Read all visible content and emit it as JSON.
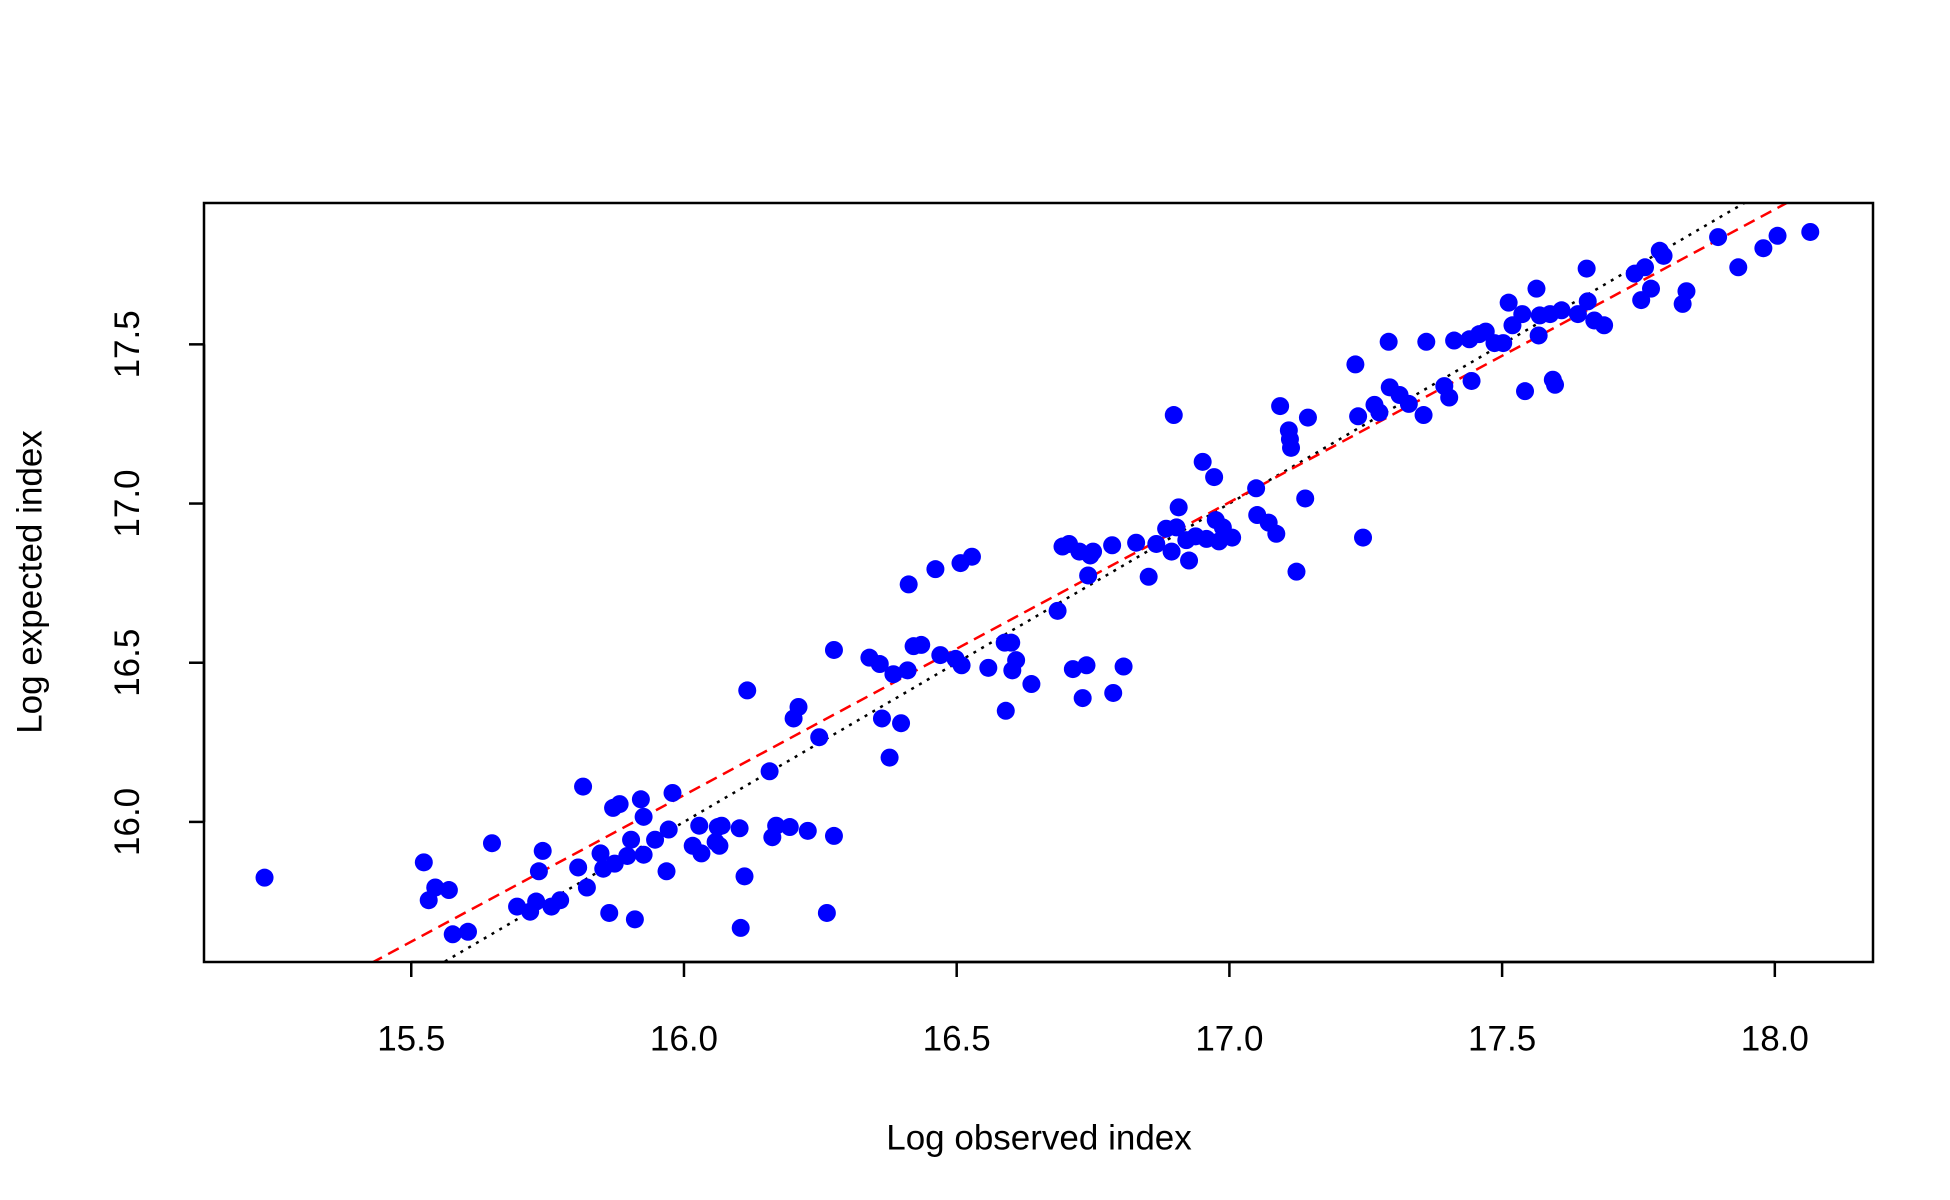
{
  "chart_data": {
    "type": "scatter",
    "xlabel": "Log observed index",
    "ylabel": "Log expected index",
    "xlim": [
      15.12,
      18.18
    ],
    "ylim": [
      15.56,
      17.944
    ],
    "xticks": [
      15.5,
      {
        "value": 16,
        "label": "16.0"
      },
      16.5,
      {
        "value": 17,
        "label": "17.0"
      },
      17.5,
      {
        "value": 18,
        "label": "18.0"
      }
    ],
    "yticks": [
      {
        "value": 16,
        "label": "16.0"
      },
      16.5,
      {
        "value": 17,
        "label": "17.0"
      },
      17.5
    ],
    "grid": false,
    "lines": [
      {
        "slope": 1,
        "intercept": 0,
        "color": "#000000",
        "style": "dotted"
      },
      {
        "slope": 0.92,
        "intercept": 1.364,
        "color": "#ff0000",
        "style": "dashed"
      }
    ],
    "series": [
      {
        "color": "#0000ff",
        "x": [
          15.231,
          15.523,
          15.532,
          15.544,
          15.569,
          15.576,
          15.604,
          15.648,
          15.694,
          15.718,
          15.729,
          15.734,
          15.741,
          15.757,
          15.773,
          15.806,
          15.815,
          15.822,
          15.847,
          15.852,
          15.863,
          15.87,
          15.873,
          15.882,
          15.896,
          15.903,
          15.91,
          15.921,
          15.926,
          15.926,
          15.947,
          15.968,
          15.972,
          15.979,
          16.016,
          16.028,
          16.032,
          16.058,
          16.062,
          16.065,
          16.069,
          16.102,
          16.104,
          16.111,
          16.116,
          16.157,
          16.162,
          16.169,
          16.194,
          16.201,
          16.21,
          16.227,
          16.248,
          16.262,
          16.275,
          16.275,
          16.34,
          16.359,
          16.363,
          16.377,
          16.384,
          16.398,
          16.41,
          16.412,
          16.421,
          16.435,
          16.461,
          16.47,
          16.498,
          16.507,
          16.509,
          16.528,
          16.558,
          16.588,
          16.59,
          16.6,
          16.602,
          16.609,
          16.637,
          16.685,
          16.694,
          16.706,
          16.713,
          16.725,
          16.731,
          16.738,
          16.741,
          16.745,
          16.75,
          16.785,
          16.787,
          16.806,
          16.829,
          16.852,
          16.866,
          16.884,
          16.898,
          16.894,
          16.903,
          16.907,
          16.921,
          16.926,
          16.938,
          16.951,
          16.958,
          16.972,
          16.975,
          16.981,
          16.988,
          17.005,
          17.049,
          17.051,
          17.072,
          17.086,
          17.093,
          17.109,
          17.113,
          17.111,
          17.123,
          17.139,
          17.144,
          17.231,
          17.236,
          17.245,
          17.266,
          17.275,
          17.292,
          17.294,
          17.312,
          17.329,
          17.356,
          17.361,
          17.394,
          17.403,
          17.412,
          17.44,
          17.444,
          17.458,
          17.47,
          17.486,
          17.502,
          17.512,
          17.519,
          17.537,
          17.542,
          17.563,
          17.567,
          17.569,
          17.588,
          17.593,
          17.597,
          17.609,
          17.639,
          17.655,
          17.657,
          17.669,
          17.687,
          17.743,
          17.755,
          17.762,
          17.773,
          17.789,
          17.796,
          17.831,
          17.838,
          17.896,
          17.933,
          17.979,
          18.005,
          18.065
        ],
        "values": [
          15.825,
          15.873,
          15.754,
          15.794,
          15.786,
          15.647,
          15.655,
          15.933,
          15.734,
          15.718,
          15.75,
          15.845,
          15.909,
          15.734,
          15.754,
          15.857,
          16.111,
          15.794,
          15.901,
          15.853,
          15.714,
          16.044,
          15.869,
          16.056,
          15.893,
          15.944,
          15.694,
          16.071,
          15.897,
          16.016,
          15.944,
          15.845,
          15.976,
          16.091,
          15.925,
          15.988,
          15.901,
          15.937,
          15.984,
          15.925,
          15.988,
          15.98,
          15.667,
          15.829,
          16.413,
          16.159,
          15.952,
          15.988,
          15.984,
          16.325,
          16.361,
          15.972,
          16.266,
          15.714,
          16.54,
          15.956,
          16.516,
          16.496,
          16.325,
          16.202,
          16.464,
          16.31,
          16.476,
          16.746,
          16.552,
          16.556,
          16.794,
          16.524,
          16.512,
          16.813,
          16.492,
          16.833,
          16.484,
          16.563,
          16.349,
          16.563,
          16.476,
          16.508,
          16.433,
          16.663,
          16.865,
          16.873,
          16.48,
          16.849,
          16.389,
          16.492,
          16.774,
          16.837,
          16.849,
          16.869,
          16.405,
          16.488,
          16.877,
          16.77,
          16.873,
          16.921,
          17.278,
          16.849,
          16.925,
          16.988,
          16.885,
          16.821,
          16.897,
          17.131,
          16.889,
          17.083,
          16.948,
          16.881,
          16.925,
          16.893,
          17.048,
          16.964,
          16.94,
          16.905,
          17.306,
          17.23,
          17.175,
          17.202,
          16.786,
          17.016,
          17.27,
          17.437,
          17.274,
          16.893,
          17.31,
          17.286,
          17.508,
          17.365,
          17.341,
          17.313,
          17.278,
          17.508,
          17.369,
          17.333,
          17.512,
          17.516,
          17.385,
          17.532,
          17.54,
          17.504,
          17.504,
          17.631,
          17.56,
          17.595,
          17.353,
          17.675,
          17.528,
          17.591,
          17.595,
          17.389,
          17.373,
          17.607,
          17.595,
          17.738,
          17.635,
          17.575,
          17.56,
          17.722,
          17.639,
          17.742,
          17.675,
          17.794,
          17.778,
          17.627,
          17.667,
          17.837,
          17.742,
          17.802,
          17.841,
          17.853
        ]
      }
    ]
  }
}
